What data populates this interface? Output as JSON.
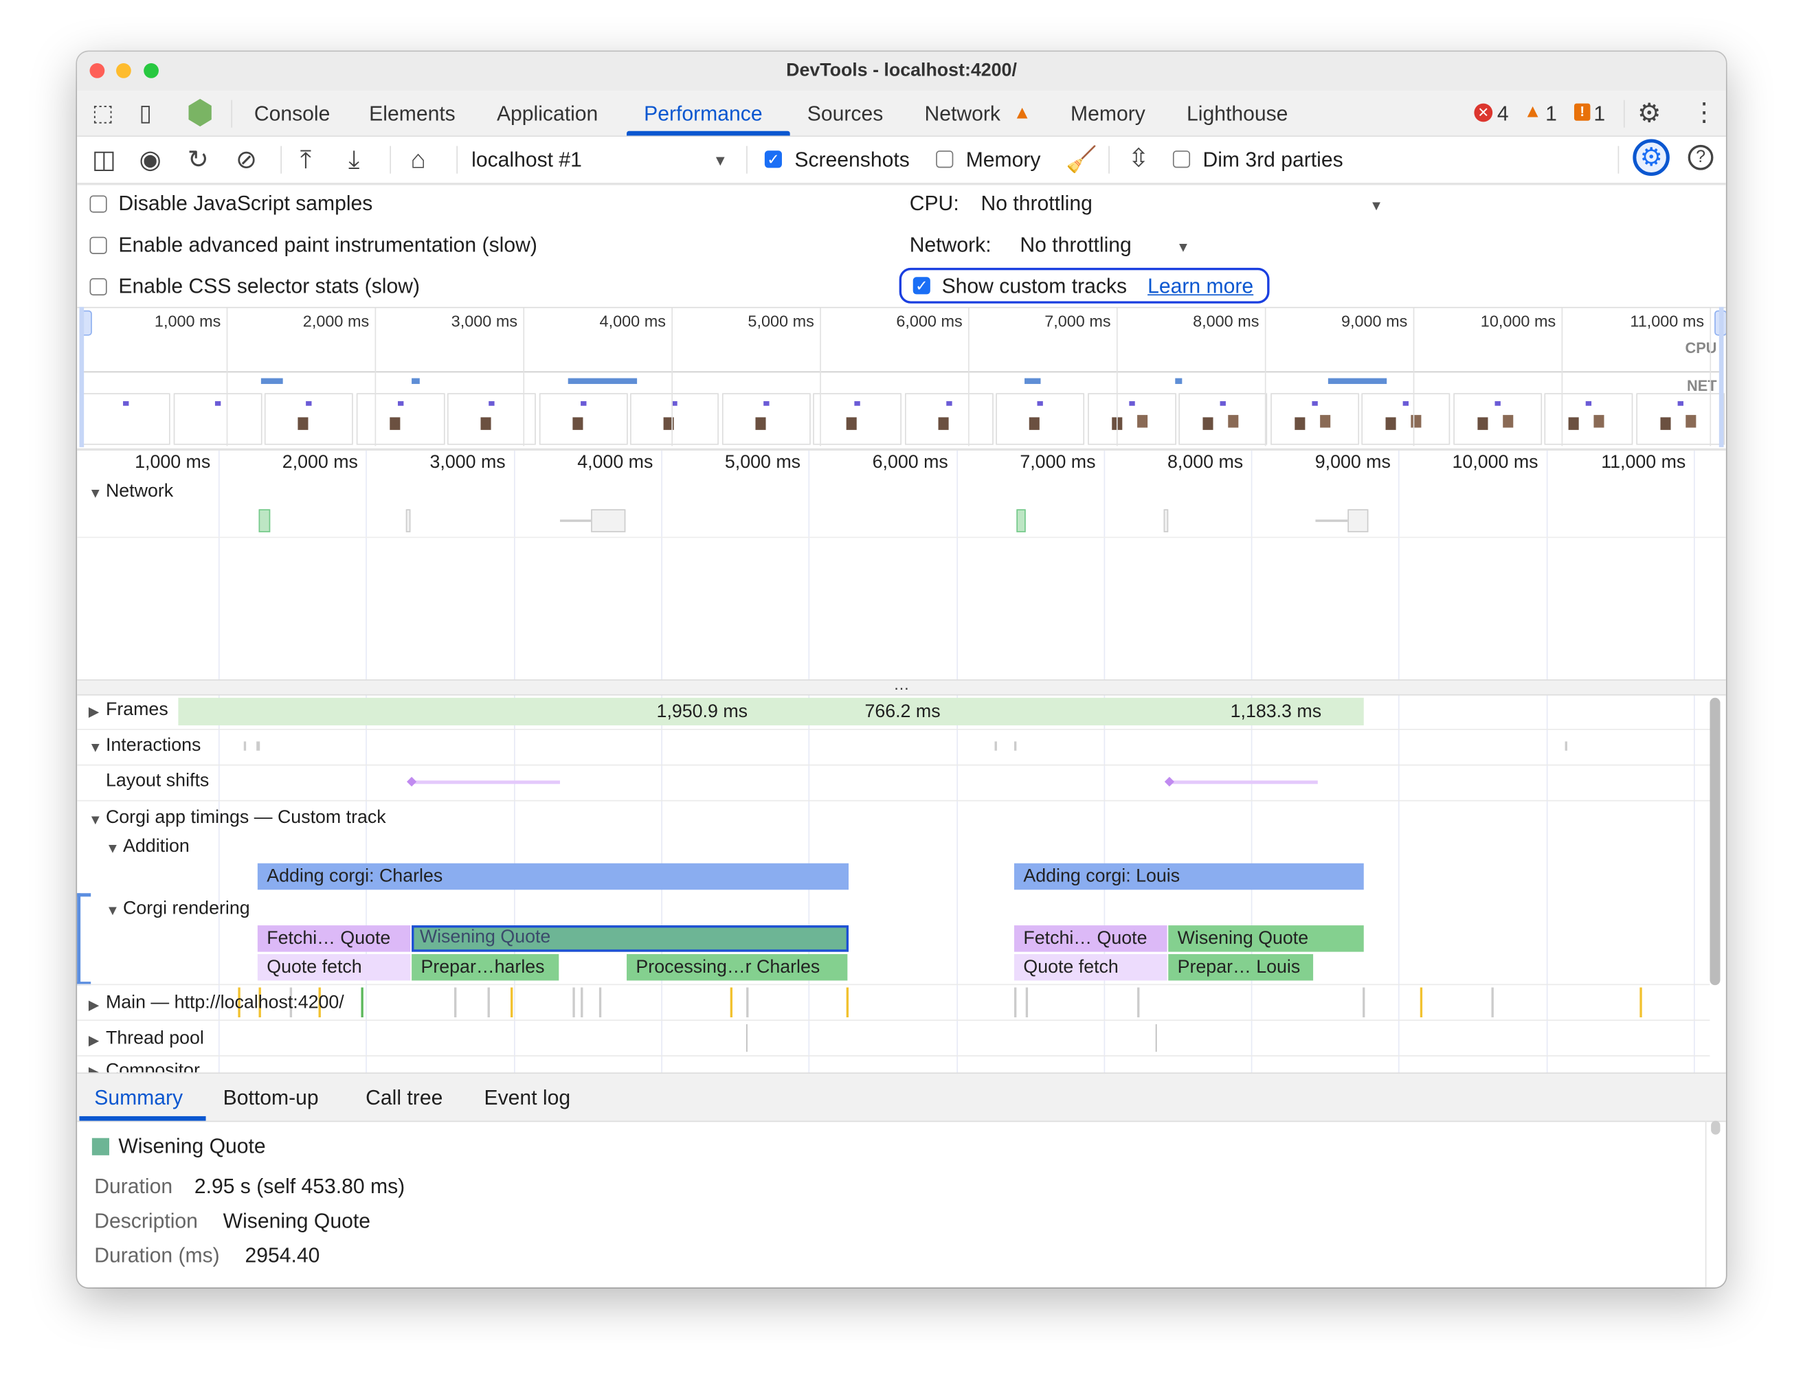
{
  "window": {
    "title": "DevTools - localhost:4200/"
  },
  "tabs": [
    {
      "label": "Console"
    },
    {
      "label": "Elements"
    },
    {
      "label": "Application"
    },
    {
      "label": "Performance",
      "active": true
    },
    {
      "label": "Sources"
    },
    {
      "label": "Network",
      "warning": true
    },
    {
      "label": "Memory"
    },
    {
      "label": "Lighthouse"
    }
  ],
  "status": {
    "errors": "4",
    "warnings": "1",
    "issues": "1"
  },
  "toolbar": {
    "target": "localhost #1",
    "screenshots_label": "Screenshots",
    "screenshots_checked": true,
    "memory_label": "Memory",
    "memory_checked": false,
    "dim_label": "Dim 3rd parties",
    "dim_checked": false
  },
  "settings": {
    "disable_js": "Disable JavaScript samples",
    "adv_paint": "Enable advanced paint instrumentation (slow)",
    "css_stats": "Enable CSS selector stats (slow)",
    "cpu_label": "CPU:",
    "cpu_value": "No throttling",
    "network_label": "Network:",
    "network_value": "No throttling",
    "custom_tracks": "Show custom tracks",
    "custom_tracks_checked": true,
    "learn_more": "Learn more"
  },
  "overview": {
    "ticks": [
      "1,000 ms",
      "2,000 ms",
      "3,000 ms",
      "4,000 ms",
      "5,000 ms",
      "6,000 ms",
      "7,000 ms",
      "8,000 ms",
      "9,000 ms",
      "10,000 ms",
      "11,000 ms"
    ],
    "cpu_label": "CPU",
    "net_label": "NET"
  },
  "ruler": {
    "ticks": [
      "1,000 ms",
      "2,000 ms",
      "3,000 ms",
      "4,000 ms",
      "5,000 ms",
      "6,000 ms",
      "7,000 ms",
      "8,000 ms",
      "9,000 ms",
      "10,000 ms",
      "11,000 ms"
    ]
  },
  "tracks": {
    "network": "Network",
    "frames": "Frames",
    "interactions": "Interactions",
    "layout_shifts": "Layout shifts",
    "custom": "Corgi app timings — Custom track",
    "addition": "Addition",
    "rendering": "Corgi rendering",
    "main": "Main — http://localhost:4200/",
    "thread_pool": "Thread pool",
    "compositor": "Compositor",
    "frame_labels": [
      "1,950.9 ms",
      "766.2 ms",
      "1,183.3 ms"
    ],
    "addition_events": [
      "Adding corgi: Charles",
      "Adding corgi: Louis"
    ],
    "rendering_row1": [
      "Fetchi… Quote",
      "Wisening Quote",
      "Fetchi… Quote",
      "Wisening Quote"
    ],
    "rendering_row2": [
      "Quote fetch",
      "Prepar…harles",
      "Processing…r Charles",
      "Quote fetch",
      "Prepar… Louis"
    ]
  },
  "bottom_tabs": [
    {
      "label": "Summary",
      "active": true
    },
    {
      "label": "Bottom-up"
    },
    {
      "label": "Call tree"
    },
    {
      "label": "Event log"
    }
  ],
  "summary": {
    "title": "Wisening Quote",
    "color": "#6db595",
    "rows": [
      {
        "key": "Duration",
        "value": "2.95 s (self 453.80 ms)"
      },
      {
        "key": "Description",
        "value": "Wisening Quote"
      },
      {
        "key": "Duration (ms)",
        "value": "2954.40"
      }
    ]
  },
  "colors": {
    "accent": "#0b57d0",
    "addition": "#8aadf0",
    "purple": "#dcb9f7",
    "light_purple": "#eddcfd",
    "green": "#84d08f",
    "selected": "#6db595"
  }
}
